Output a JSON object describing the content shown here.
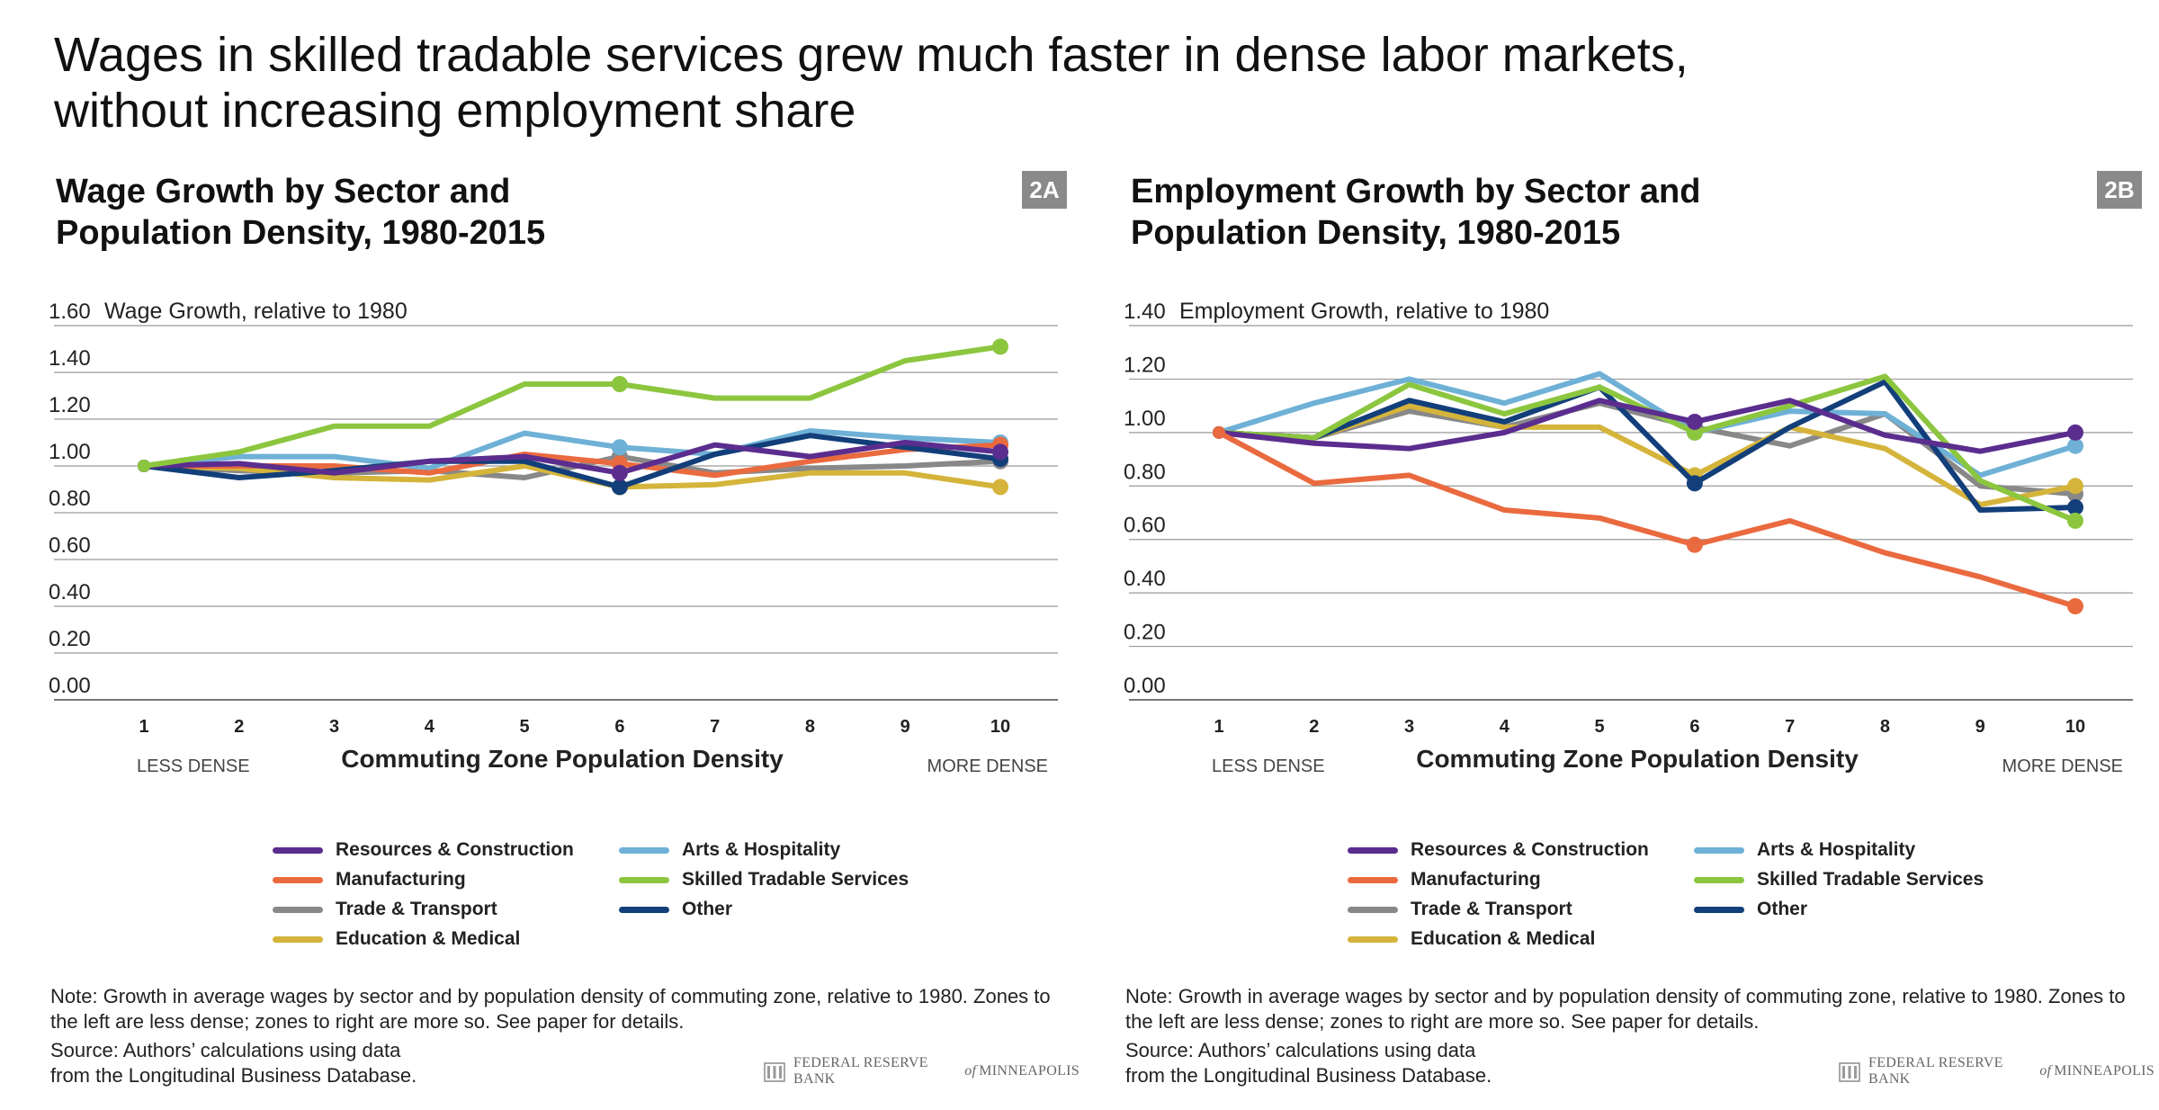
{
  "headline": "Wages in skilled tradable services grew much faster in dense labor markets,",
  "headline_line2": "without increasing employment share",
  "legend": [
    {
      "label": "Resources & Construction",
      "color": "#5b2d8e"
    },
    {
      "label": "Arts & Hospitality",
      "color": "#6fb1d6"
    },
    {
      "label": "Manufacturing",
      "color": "#ea6a3f"
    },
    {
      "label": "Skilled Tradable Services",
      "color": "#8cc63f"
    },
    {
      "label": "Trade & Transport",
      "color": "#888888"
    },
    {
      "label": "Other",
      "color": "#123f7a"
    },
    {
      "label": "Education & Medical",
      "color": "#d4b43a"
    }
  ],
  "note": "Note: Growth in average wages by sector and by population density of commuting zone, relative to 1980. Zones to the left are less dense; zones to right are more so. See paper for details.",
  "source_line1": "Source: Authors’ calculations using data",
  "source_line2": "from the Longitudinal Business Database.",
  "logo_pre": "FEDERAL RESERVE BANK",
  "logo_of": "of",
  "logo_post": "MINNEAPOLIS",
  "panels": {
    "a": {
      "title_line1": "Wage Growth by Sector and",
      "title_line2": "Population Density, 1980-2015",
      "tag": "2A"
    },
    "b": {
      "title_line1": "Employment Growth by Sector and",
      "title_line2": "Population Density, 1980-2015",
      "tag": "2B"
    }
  },
  "chart_data": [
    {
      "type": "line",
      "title": "Wage Growth by Sector and Population Density, 1980-2015",
      "ylabel": "Wage Growth, relative to 1980",
      "xlabel": "Commuting Zone Population Density",
      "x_left_note": "LESS DENSE",
      "x_right_note": "MORE DENSE",
      "x": [
        1,
        2,
        3,
        4,
        5,
        6,
        7,
        8,
        9,
        10
      ],
      "ylim": [
        0,
        1.6
      ],
      "yticks": [
        0.0,
        0.2,
        0.4,
        0.6,
        0.8,
        1.0,
        1.2,
        1.4,
        1.6
      ],
      "ytick_labels": [
        "0.00",
        "0.20",
        "0.40",
        "0.60",
        "0.80",
        "1.00",
        "1.20",
        "1.40",
        "1.60"
      ],
      "markers_at": [
        6,
        10
      ],
      "series": [
        {
          "name": "Trade & Transport",
          "color": "#888888",
          "values": [
            1.0,
            0.98,
            0.97,
            0.98,
            0.95,
            1.04,
            0.97,
            0.99,
            1.0,
            1.02
          ]
        },
        {
          "name": "Education & Medical",
          "color": "#d4b43a",
          "values": [
            1.0,
            0.99,
            0.95,
            0.94,
            1.0,
            0.91,
            0.92,
            0.97,
            0.97,
            0.91
          ]
        },
        {
          "name": "Arts & Hospitality",
          "color": "#6fb1d6",
          "values": [
            1.0,
            1.04,
            1.04,
            0.99,
            1.14,
            1.08,
            1.05,
            1.15,
            1.12,
            1.1
          ]
        },
        {
          "name": "Manufacturing",
          "color": "#ea6a3f",
          "values": [
            1.0,
            1.0,
            1.0,
            0.97,
            1.05,
            1.01,
            0.96,
            1.02,
            1.07,
            1.09
          ]
        },
        {
          "name": "Other",
          "color": "#123f7a",
          "values": [
            1.0,
            0.95,
            0.98,
            1.02,
            1.02,
            0.91,
            1.05,
            1.13,
            1.08,
            1.03
          ]
        },
        {
          "name": "Resources & Construction",
          "color": "#5b2d8e",
          "values": [
            1.0,
            1.01,
            0.97,
            1.02,
            1.04,
            0.97,
            1.09,
            1.04,
            1.1,
            1.06
          ]
        },
        {
          "name": "Skilled Tradable Services",
          "color": "#8cc63f",
          "values": [
            1.0,
            1.06,
            1.17,
            1.17,
            1.35,
            1.35,
            1.29,
            1.29,
            1.45,
            1.51
          ]
        }
      ]
    },
    {
      "type": "line",
      "title": "Employment Growth by Sector and Population Density, 1980-2015",
      "ylabel": "Employment Growth, relative to 1980",
      "xlabel": "Commuting Zone Population Density",
      "x_left_note": "LESS DENSE",
      "x_right_note": "MORE DENSE",
      "x": [
        1,
        2,
        3,
        4,
        5,
        6,
        7,
        8,
        9,
        10
      ],
      "ylim": [
        0,
        1.4
      ],
      "yticks": [
        0.0,
        0.2,
        0.4,
        0.6,
        0.8,
        1.0,
        1.2,
        1.4
      ],
      "ytick_labels": [
        "0.00",
        "0.20",
        "0.40",
        "0.60",
        "0.80",
        "1.00",
        "1.20",
        "1.40"
      ],
      "markers_at": [
        6,
        10
      ],
      "series": [
        {
          "name": "Trade & Transport",
          "color": "#888888",
          "values": [
            1.0,
            0.98,
            1.08,
            1.02,
            1.11,
            1.02,
            0.95,
            1.07,
            0.8,
            0.77
          ]
        },
        {
          "name": "Education & Medical",
          "color": "#d4b43a",
          "values": [
            1.0,
            0.98,
            1.1,
            1.02,
            1.02,
            0.84,
            1.02,
            0.94,
            0.73,
            0.8
          ]
        },
        {
          "name": "Arts & Hospitality",
          "color": "#6fb1d6",
          "values": [
            1.0,
            1.11,
            1.2,
            1.11,
            1.22,
            1.0,
            1.08,
            1.07,
            0.84,
            0.95
          ]
        },
        {
          "name": "Other",
          "color": "#123f7a",
          "values": [
            1.0,
            0.98,
            1.12,
            1.04,
            1.17,
            0.81,
            1.02,
            1.19,
            0.71,
            0.72
          ]
        },
        {
          "name": "Skilled Tradable Services",
          "color": "#8cc63f",
          "values": [
            1.0,
            0.98,
            1.18,
            1.07,
            1.17,
            1.0,
            1.1,
            1.21,
            0.82,
            0.67
          ]
        },
        {
          "name": "Resources & Construction",
          "color": "#5b2d8e",
          "values": [
            1.0,
            0.96,
            0.94,
            1.0,
            1.12,
            1.04,
            1.12,
            0.99,
            0.93,
            1.0
          ]
        },
        {
          "name": "Manufacturing",
          "color": "#ea6a3f",
          "values": [
            1.0,
            0.81,
            0.84,
            0.71,
            0.68,
            0.58,
            0.67,
            0.55,
            0.46,
            0.35
          ]
        }
      ]
    }
  ]
}
